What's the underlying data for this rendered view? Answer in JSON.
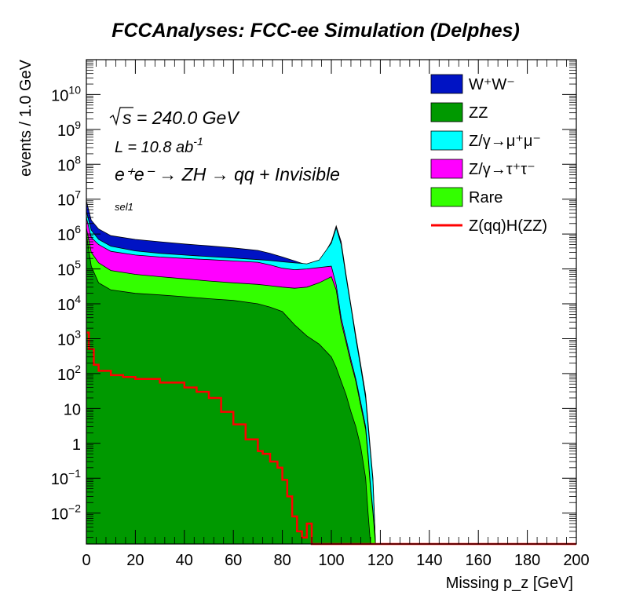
{
  "chart_data": {
    "type": "area",
    "title": "FCCAnalyses: FCC-ee Simulation (Delphes)",
    "xlabel": "Missing p_z [GeV]",
    "ylabel": "events / 1.0 GeV",
    "xlim": [
      0,
      200
    ],
    "ylim": [
      0.0013,
      100000000000.0
    ],
    "log_y": true,
    "grid": false,
    "legend_position": "top-right",
    "stacked": true,
    "x_ticks": [
      "0",
      "20",
      "40",
      "60",
      "80",
      "100",
      "120",
      "140",
      "160",
      "180",
      "200"
    ],
    "y_ticks": [
      {
        "value": 0.01,
        "base": "10",
        "exp": "−2"
      },
      {
        "value": 0.1,
        "base": "10",
        "exp": "−1"
      },
      {
        "value": 1,
        "base": "1",
        "exp": ""
      },
      {
        "value": 10,
        "base": "10",
        "exp": ""
      },
      {
        "value": 100,
        "base": "10",
        "exp": "2"
      },
      {
        "value": 1000,
        "base": "10",
        "exp": "3"
      },
      {
        "value": 10000,
        "base": "10",
        "exp": "4"
      },
      {
        "value": 100000,
        "base": "10",
        "exp": "5"
      },
      {
        "value": 1000000,
        "base": "10",
        "exp": "6"
      },
      {
        "value": 10000000,
        "base": "10",
        "exp": "7"
      },
      {
        "value": 100000000,
        "base": "10",
        "exp": "8"
      },
      {
        "value": 1000000000,
        "base": "10",
        "exp": "9"
      },
      {
        "value": 10000000000,
        "base": "10",
        "exp": "10"
      }
    ],
    "x": [
      0,
      2,
      5,
      10,
      20,
      30,
      40,
      50,
      60,
      70,
      75,
      80,
      85,
      90,
      95,
      100,
      102,
      104,
      106,
      108,
      110,
      112,
      114,
      115,
      116,
      117,
      118
    ],
    "stack_cumulative": [
      {
        "name": "ZZ",
        "values": [
          1000000,
          120000,
          40000,
          25000,
          20000,
          18000,
          16000,
          14000,
          12500,
          10000,
          8000,
          6000,
          2500,
          1200,
          700,
          300,
          150,
          60,
          25,
          8,
          3,
          0.8,
          0.1,
          0.01,
          0.0013,
          0.0013,
          0.0013
        ]
      },
      {
        "name": "Rare",
        "values": [
          1500000,
          300000,
          150000,
          90000,
          70000,
          60000,
          52000,
          45000,
          40000,
          36000,
          33000,
          30000,
          28000,
          30000,
          40000,
          60000,
          25000,
          3000,
          800,
          200,
          60,
          12,
          2.5,
          0.4,
          0.05,
          0.01,
          0.0013
        ]
      },
      {
        "name": "Z/γ→τ⁺τ⁻",
        "values": [
          3000000,
          800000,
          500000,
          320000,
          250000,
          220000,
          200000,
          185000,
          170000,
          155000,
          130000,
          105000,
          95000,
          100000,
          110000,
          120000,
          35000,
          4000,
          1000,
          250,
          70,
          15,
          3,
          0.5,
          0.06,
          0.012,
          0.0013
        ]
      },
      {
        "name": "Z/γ→μ⁺μ⁻",
        "values": [
          4500000,
          1300000,
          700000,
          450000,
          330000,
          280000,
          250000,
          225000,
          205000,
          185000,
          175000,
          160000,
          150000,
          140000,
          180000,
          550000,
          1500000,
          500000,
          60000,
          8000,
          1000,
          150,
          20,
          3,
          0.5,
          0.08,
          0.0013
        ]
      },
      {
        "name": "W⁺W⁻",
        "values": [
          9000000,
          2500000,
          1400000,
          900000,
          700000,
          600000,
          520000,
          460000,
          400000,
          340000,
          280000,
          220000,
          170000,
          130000,
          150000,
          600000,
          1700000,
          600000,
          70000,
          9000,
          1200,
          180,
          25,
          4,
          0.6,
          0.1,
          0.0013
        ]
      }
    ],
    "signal_curve": {
      "name": "Z(qq)H(ZZ)",
      "x": [
        0,
        1,
        3,
        5,
        10,
        15,
        20,
        30,
        40,
        45,
        50,
        55,
        60,
        65,
        70,
        72,
        75,
        78,
        80,
        82,
        84,
        86,
        88,
        90,
        92
      ],
      "values": [
        1500,
        500,
        180,
        120,
        90,
        80,
        70,
        55,
        40,
        30,
        20,
        8,
        3.5,
        1.3,
        0.6,
        0.5,
        0.3,
        0.2,
        0.09,
        0.03,
        0.008,
        0.003,
        0.002,
        0.005,
        0.0013
      ]
    },
    "annotations": {
      "energy_prefix": "s = 240.0 GeV",
      "lumi_main": "L = 10.8 ab",
      "lumi_exp": "-1",
      "process": "e⁺e⁻ → ZH → qq + Invisible",
      "selection": "sel1"
    },
    "legend": [
      {
        "label": "W⁺W⁻",
        "color": "#0013c4",
        "kind": "box"
      },
      {
        "label": "ZZ",
        "color": "#009900",
        "kind": "box"
      },
      {
        "label": "Z/γ→μ⁺μ⁻",
        "color": "#00ffff",
        "kind": "box"
      },
      {
        "label": "Z/γ→τ⁺τ⁻",
        "color": "#ff00ff",
        "kind": "box"
      },
      {
        "label": "Rare",
        "color": "#33ff00",
        "kind": "box"
      },
      {
        "label": "Z(qq)H(ZZ)",
        "color": "#ff0000",
        "kind": "line"
      }
    ]
  }
}
